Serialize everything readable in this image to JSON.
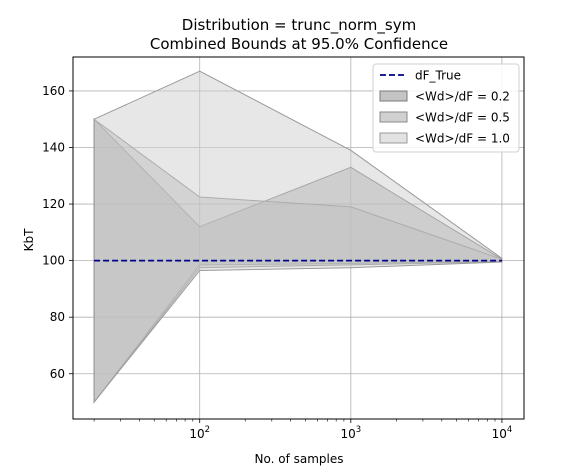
{
  "chart_data": {
    "type": "area",
    "title": "Distribution = trunc_norm_sym",
    "subtitle": "Combined Bounds at 95.0% Confidence",
    "xlabel": "No. of samples",
    "ylabel": "KbT",
    "x_scale": "log",
    "x": [
      20,
      100,
      1000,
      10000
    ],
    "xlim": [
      14.5,
      14000
    ],
    "ylim": [
      44,
      172
    ],
    "x_ticks": [
      {
        "value": 100,
        "base": "10",
        "exp": "2"
      },
      {
        "value": 1000,
        "base": "10",
        "exp": "3"
      },
      {
        "value": 10000,
        "base": "10",
        "exp": "4"
      }
    ],
    "y_ticks": [
      60,
      80,
      100,
      120,
      140,
      160
    ],
    "grid": true,
    "legend_position": "top-right",
    "reference_line": {
      "name": "dF_True",
      "value": 100,
      "color": "#00008b",
      "style": "dashed"
    },
    "series": [
      {
        "name": "<Wd>/dF = 0.2",
        "upper": [
          150,
          112,
          133,
          100.5
        ],
        "lower": [
          50,
          98.5,
          99,
          99.7
        ],
        "fill": "#9c9c9c",
        "opacity": 0.5,
        "stroke": "#7a7a7a"
      },
      {
        "name": "<Wd>/dF = 0.5",
        "upper": [
          150,
          122.5,
          119,
          100.5
        ],
        "lower": [
          50,
          97.5,
          98.5,
          99.6
        ],
        "fill": "#b0b0b0",
        "opacity": 0.5,
        "stroke": "#8a8a8a"
      },
      {
        "name": "<Wd>/dF = 1.0",
        "upper": [
          150,
          167,
          139,
          100.8
        ],
        "lower": [
          50,
          96.5,
          97.5,
          99.5
        ],
        "fill": "#cfcfcf",
        "opacity": 0.5,
        "stroke": "#9a9a9a"
      }
    ]
  }
}
